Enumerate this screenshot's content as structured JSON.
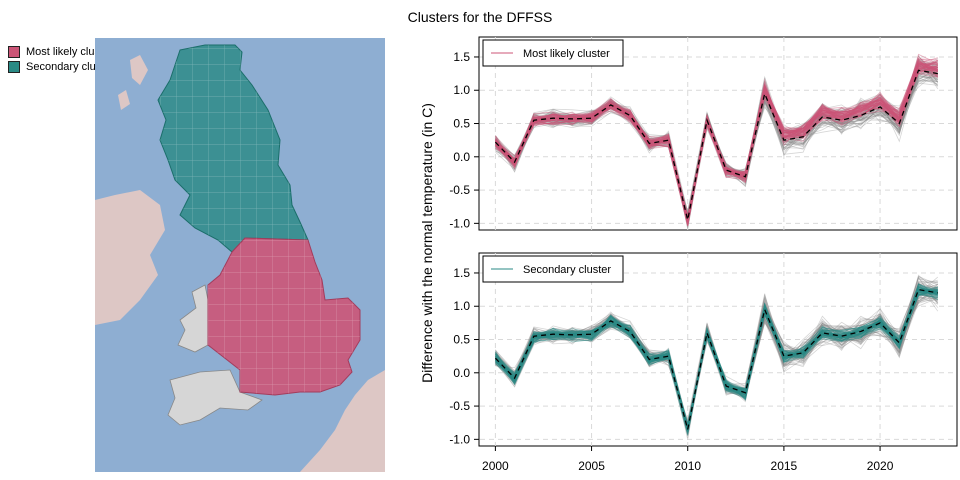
{
  "title": "Clusters for the DFFSS",
  "map_legend": [
    {
      "label": "Most likely cluster",
      "color": "#cc5577"
    },
    {
      "label": "Secondary cluster",
      "color": "#2a8a85"
    }
  ],
  "colors": {
    "sea": "#8eaed2",
    "land_other": "#ddc7c5",
    "most_likely": "#cc5577",
    "secondary": "#2a8a85",
    "grey_lines": "#8a8a8a"
  },
  "chart_data": [
    {
      "type": "line",
      "series": [
        {
          "name": "Most likely cluster",
          "color": "#cc5577"
        }
      ],
      "ylabel": "Difference with the normal temperature (in C)",
      "ylim": [
        -1.1,
        1.8
      ],
      "yticks": [
        "1.5",
        "1.0",
        "0.5",
        "0.0",
        "-0.5",
        "-1.0"
      ],
      "x": [
        2000,
        2001,
        2002,
        2003,
        2004,
        2005,
        2006,
        2007,
        2008,
        2009,
        2010,
        2011,
        2012,
        2013,
        2014,
        2015,
        2016,
        2017,
        2018,
        2019,
        2020,
        2021,
        2022,
        2023
      ],
      "mean_line": [
        0.22,
        -0.08,
        0.55,
        0.58,
        0.57,
        0.58,
        0.78,
        0.62,
        0.2,
        0.25,
        -0.95,
        0.55,
        -0.2,
        -0.3,
        0.95,
        0.25,
        0.3,
        0.6,
        0.55,
        0.62,
        0.75,
        0.5,
        1.3,
        1.25
      ],
      "grid": true,
      "legend_position": "top-left"
    },
    {
      "type": "line",
      "series": [
        {
          "name": "Secondary cluster",
          "color": "#2a8a85"
        }
      ],
      "xlim": [
        1999.2,
        2024
      ],
      "xticks": [
        "2000",
        "2005",
        "2010",
        "2015",
        "2020"
      ],
      "ylim": [
        -1.1,
        1.8
      ],
      "yticks": [
        "1.5",
        "1.0",
        "0.5",
        "0.0",
        "-0.5",
        "-1.0"
      ],
      "x": [
        2000,
        2001,
        2002,
        2003,
        2004,
        2005,
        2006,
        2007,
        2008,
        2009,
        2010,
        2011,
        2012,
        2013,
        2014,
        2015,
        2016,
        2017,
        2018,
        2019,
        2020,
        2021,
        2022,
        2023
      ],
      "mean_line": [
        0.22,
        -0.08,
        0.55,
        0.58,
        0.57,
        0.58,
        0.78,
        0.62,
        0.2,
        0.25,
        -0.85,
        0.6,
        -0.2,
        -0.3,
        0.95,
        0.25,
        0.3,
        0.6,
        0.55,
        0.62,
        0.75,
        0.45,
        1.25,
        1.2
      ],
      "grid": true,
      "legend_position": "top-left"
    }
  ]
}
